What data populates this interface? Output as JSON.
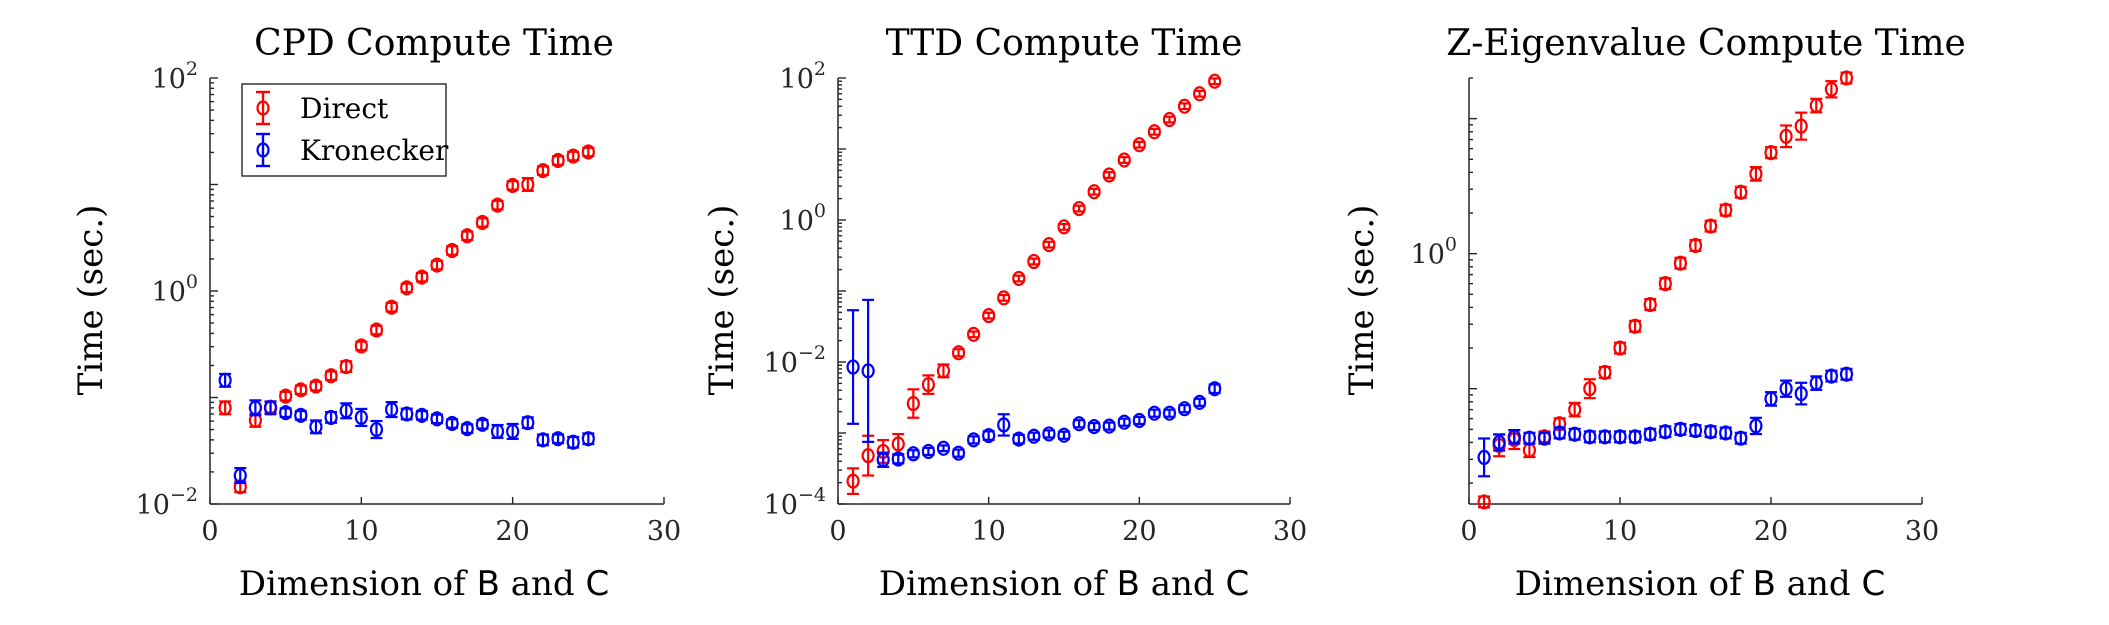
{
  "colors": {
    "direct": "#ff0000",
    "kronecker": "#0000ff",
    "axis": "#262626"
  },
  "chart_data": [
    {
      "type": "scatter",
      "title": "CPD Compute Time",
      "xlabel": {
        "pre": "Dimension of ",
        "b": "B",
        "mid": " and ",
        "c": "C"
      },
      "ylabel": "Time (sec.)",
      "xlim": [
        0,
        30
      ],
      "ylim": [
        0.01,
        100
      ],
      "yscale": "log",
      "xticks": [
        0,
        10,
        20,
        30
      ],
      "xtick_labels": [
        "0",
        "10",
        "20",
        "30"
      ],
      "yticks": [
        0.01,
        1,
        100
      ],
      "ytick_labels": [
        {
          "base": "10",
          "exp": "−2"
        },
        {
          "base": "10",
          "exp": "0"
        },
        {
          "base": "10",
          "exp": "2"
        }
      ],
      "legend": {
        "position": "top-left",
        "entries": [
          "Direct",
          "Kronecker"
        ]
      },
      "series": [
        {
          "name": "Direct",
          "color": "#ff0000",
          "x": [
            1,
            2,
            3,
            4,
            5,
            6,
            7,
            8,
            9,
            10,
            11,
            12,
            13,
            14,
            15,
            16,
            17,
            18,
            19,
            20,
            21,
            22,
            23,
            24,
            25
          ],
          "y": [
            0.08,
            0.0145,
            0.061,
            0.081,
            0.103,
            0.118,
            0.128,
            0.16,
            0.195,
            0.305,
            0.43,
            0.705,
            1.07,
            1.35,
            1.75,
            2.4,
            3.3,
            4.4,
            6.4,
            9.8,
            10.0,
            13.5,
            16.8,
            18.5,
            20.2
          ],
          "err": [
            0.06,
            0.05,
            0.06,
            0.05,
            0.04,
            0.04,
            0.04,
            0.04,
            0.05,
            0.04,
            0.04,
            0.04,
            0.04,
            0.04,
            0.04,
            0.04,
            0.04,
            0.04,
            0.04,
            0.04,
            0.06,
            0.04,
            0.04,
            0.04,
            0.04
          ]
        },
        {
          "name": "Kronecker",
          "color": "#0000ff",
          "x": [
            1,
            2,
            3,
            4,
            5,
            6,
            7,
            8,
            9,
            10,
            11,
            12,
            13,
            14,
            15,
            16,
            17,
            18,
            19,
            20,
            21,
            22,
            23,
            24,
            25
          ],
          "y": [
            0.145,
            0.0185,
            0.08,
            0.08,
            0.072,
            0.068,
            0.053,
            0.065,
            0.075,
            0.065,
            0.05,
            0.077,
            0.07,
            0.068,
            0.063,
            0.057,
            0.051,
            0.056,
            0.048,
            0.048,
            0.058,
            0.04,
            0.041,
            0.038,
            0.041
          ],
          "err": [
            0.06,
            0.07,
            0.07,
            0.06,
            0.04,
            0.04,
            0.06,
            0.05,
            0.07,
            0.08,
            0.08,
            0.07,
            0.05,
            0.04,
            0.04,
            0.04,
            0.04,
            0.04,
            0.06,
            0.07,
            0.05,
            0.05,
            0.04,
            0.05,
            0.05
          ]
        }
      ]
    },
    {
      "type": "scatter",
      "title": "TTD Compute Time",
      "xlabel": {
        "pre": "Dimension of ",
        "b": "B",
        "mid": " and ",
        "c": "C"
      },
      "ylabel": "Time (sec.)",
      "xlim": [
        0,
        30
      ],
      "ylim": [
        0.0001,
        100
      ],
      "yscale": "log",
      "xticks": [
        0,
        10,
        20,
        30
      ],
      "xtick_labels": [
        "0",
        "10",
        "20",
        "30"
      ],
      "yticks": [
        0.0001,
        0.01,
        1,
        100
      ],
      "ytick_labels": [
        {
          "base": "10",
          "exp": "−4"
        },
        {
          "base": "10",
          "exp": "−2"
        },
        {
          "base": "10",
          "exp": "0"
        },
        {
          "base": "10",
          "exp": "2"
        }
      ],
      "series": [
        {
          "name": "Direct",
          "color": "#ff0000",
          "x": [
            1,
            2,
            3,
            4,
            5,
            6,
            7,
            8,
            9,
            10,
            11,
            12,
            13,
            14,
            15,
            16,
            17,
            18,
            19,
            20,
            21,
            22,
            23,
            24,
            25
          ],
          "y": [
            0.00021,
            0.00048,
            0.00055,
            0.0007,
            0.0026,
            0.0048,
            0.0075,
            0.0135,
            0.0245,
            0.045,
            0.08,
            0.15,
            0.26,
            0.45,
            0.8,
            1.45,
            2.5,
            4.3,
            7.0,
            11.5,
            17.5,
            26.0,
            40.0,
            60.0,
            90.0
          ],
          "err": [
            0.18,
            0.28,
            0.16,
            0.14,
            0.2,
            0.13,
            0.09,
            0.05,
            0.04,
            0.04,
            0.04,
            0.04,
            0.04,
            0.04,
            0.04,
            0.04,
            0.04,
            0.04,
            0.04,
            0.04,
            0.04,
            0.04,
            0.04,
            0.04,
            0.04
          ]
        },
        {
          "name": "Kronecker",
          "color": "#0000ff",
          "x": [
            1,
            2,
            3,
            4,
            5,
            6,
            7,
            8,
            9,
            10,
            11,
            12,
            13,
            14,
            15,
            16,
            17,
            18,
            19,
            20,
            21,
            22,
            23,
            24,
            25
          ],
          "y": [
            0.0085,
            0.0075,
            0.00042,
            0.00043,
            0.00051,
            0.00055,
            0.00061,
            0.00052,
            0.0008,
            0.00092,
            0.0013,
            0.00082,
            0.0009,
            0.00097,
            0.00093,
            0.00135,
            0.00123,
            0.00125,
            0.00142,
            0.0015,
            0.0019,
            0.0019,
            0.0022,
            0.0027,
            0.0042
          ],
          "err": [
            0.8,
            1.0,
            0.1,
            0.06,
            0.05,
            0.05,
            0.04,
            0.05,
            0.05,
            0.06,
            0.15,
            0.06,
            0.05,
            0.05,
            0.05,
            0.05,
            0.05,
            0.05,
            0.05,
            0.05,
            0.05,
            0.05,
            0.05,
            0.05,
            0.06
          ]
        }
      ]
    },
    {
      "type": "scatter",
      "title": "Z-Eigenvalue Compute Time",
      "xlabel": {
        "pre": "Dimension of ",
        "b": "B",
        "mid": " and ",
        "c": "C"
      },
      "ylabel": "Time (sec.)",
      "xlim": [
        0,
        30
      ],
      "ylim": [
        0.014,
        20
      ],
      "yscale": "log",
      "xticks": [
        0,
        10,
        20,
        30
      ],
      "xtick_labels": [
        "0",
        "10",
        "20",
        "30"
      ],
      "yticks": [
        1
      ],
      "ytick_labels": [
        {
          "base": "10",
          "exp": "0"
        }
      ],
      "series": [
        {
          "name": "Direct",
          "color": "#ff0000",
          "x": [
            1,
            2,
            3,
            4,
            5,
            6,
            7,
            8,
            9,
            10,
            11,
            12,
            13,
            14,
            15,
            16,
            17,
            18,
            19,
            20,
            21,
            22,
            23,
            24,
            25
          ],
          "y": [
            0.0145,
            0.038,
            0.042,
            0.035,
            0.044,
            0.055,
            0.07,
            0.1,
            0.132,
            0.2,
            0.29,
            0.42,
            0.6,
            0.85,
            1.15,
            1.6,
            2.1,
            2.85,
            3.9,
            5.6,
            7.4,
            8.8,
            12.5,
            16.5,
            20.0
          ],
          "err": [
            0.04,
            0.08,
            0.07,
            0.05,
            0.04,
            0.04,
            0.05,
            0.07,
            0.04,
            0.04,
            0.04,
            0.04,
            0.04,
            0.04,
            0.04,
            0.04,
            0.04,
            0.04,
            0.05,
            0.04,
            0.08,
            0.1,
            0.05,
            0.06,
            0.04
          ]
        },
        {
          "name": "Kronecker",
          "color": "#0000ff",
          "x": [
            1,
            2,
            3,
            4,
            5,
            6,
            7,
            8,
            9,
            10,
            11,
            12,
            13,
            14,
            15,
            16,
            17,
            18,
            19,
            20,
            21,
            22,
            23,
            24,
            25
          ],
          "y": [
            0.031,
            0.04,
            0.044,
            0.043,
            0.043,
            0.047,
            0.046,
            0.044,
            0.044,
            0.044,
            0.044,
            0.046,
            0.048,
            0.05,
            0.049,
            0.048,
            0.047,
            0.043,
            0.053,
            0.084,
            0.1,
            0.092,
            0.11,
            0.124,
            0.128
          ],
          "err": [
            0.14,
            0.06,
            0.05,
            0.04,
            0.04,
            0.04,
            0.04,
            0.04,
            0.04,
            0.04,
            0.04,
            0.04,
            0.04,
            0.04,
            0.04,
            0.04,
            0.04,
            0.04,
            0.06,
            0.05,
            0.06,
            0.08,
            0.05,
            0.04,
            0.04
          ]
        }
      ]
    }
  ]
}
